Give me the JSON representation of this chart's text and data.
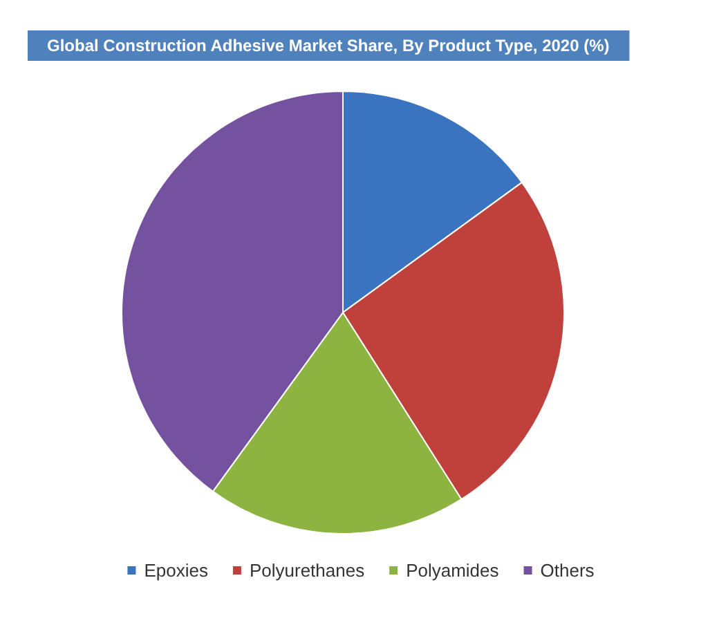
{
  "chart_data": {
    "type": "pie",
    "title": "Global Construction Adhesive Market Share, By Product Type, 2020 (%)",
    "categories": [
      "Epoxies",
      "Polyurethanes",
      "Polyamides",
      "Others"
    ],
    "values": [
      15,
      26,
      19,
      40
    ],
    "colors": [
      "#3a73c0",
      "#c0403c",
      "#8db440",
      "#7552a0"
    ],
    "legend": "bottom"
  }
}
